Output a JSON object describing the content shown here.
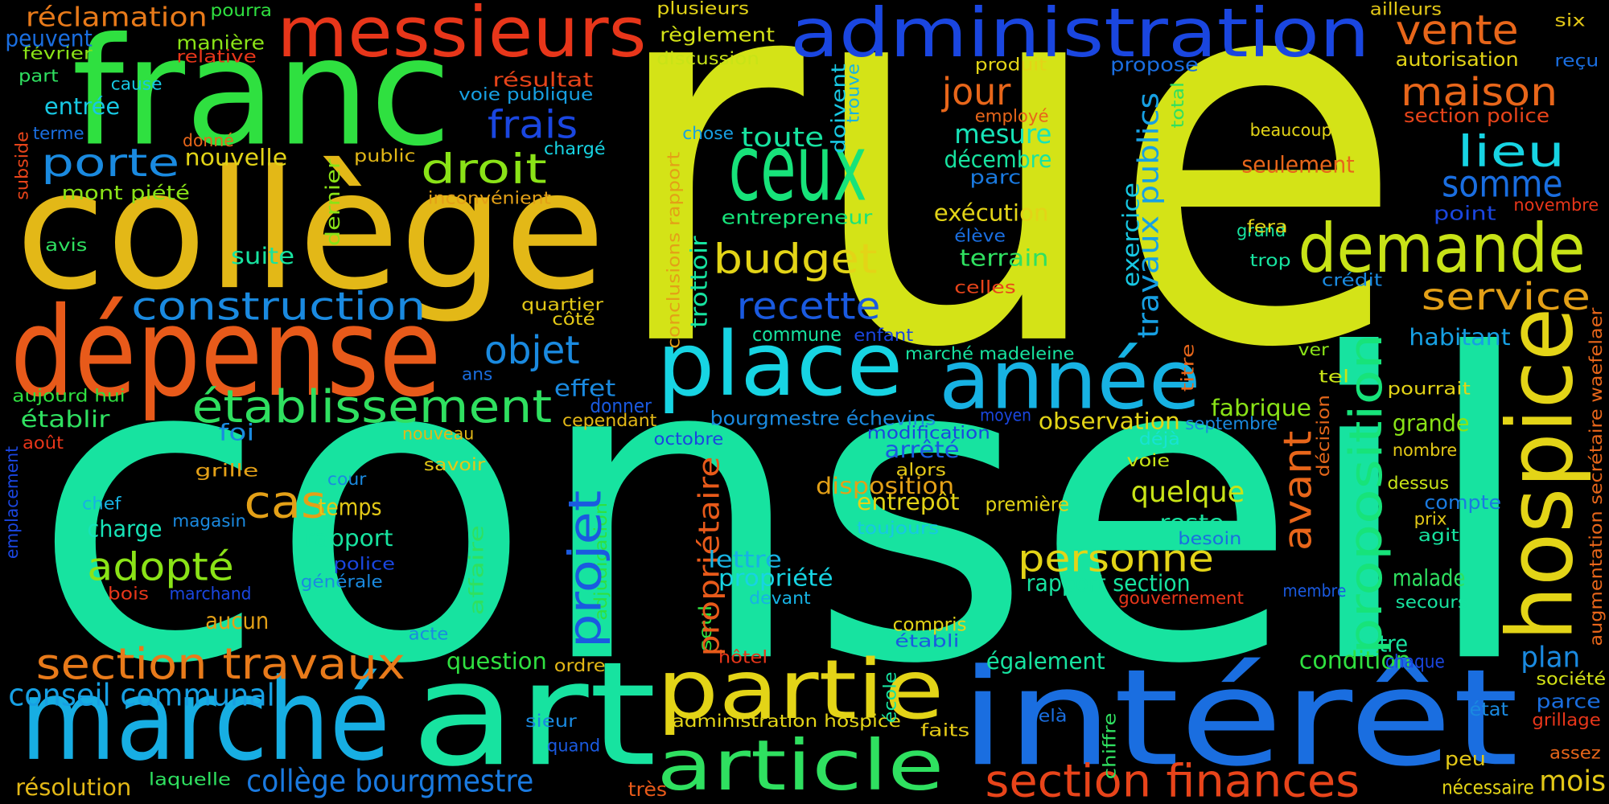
{
  "words": [
    {
      "text": "rue",
      "color": "#d4e317"
    },
    {
      "text": "conseil",
      "color": "#17e3a0"
    },
    {
      "text": "franc",
      "color": "#2fe040"
    },
    {
      "text": "collège",
      "color": "#e3b817"
    },
    {
      "text": "messieurs",
      "color": "#e8361a"
    },
    {
      "text": "administration",
      "color": "#1a46e0"
    },
    {
      "text": "dépense",
      "color": "#e85a1a"
    },
    {
      "text": "ceux",
      "color": "#17e37a"
    },
    {
      "text": "place",
      "color": "#17d4e3"
    },
    {
      "text": "année",
      "color": "#17b2e3"
    },
    {
      "text": "demande",
      "color": "#c8e317"
    },
    {
      "text": "hospice",
      "color": "#e3d417"
    },
    {
      "text": "intérêt",
      "color": "#1a6ee0"
    },
    {
      "text": "art",
      "color": "#17e3a0"
    },
    {
      "text": "marché",
      "color": "#17aee3"
    },
    {
      "text": "partie",
      "color": "#e3d417"
    },
    {
      "text": "article",
      "color": "#2fe060"
    },
    {
      "text": "section finances",
      "color": "#e8441a"
    },
    {
      "text": "section travaux",
      "color": "#e87a1a"
    },
    {
      "text": "conseil communal",
      "color": "#17a0e3"
    },
    {
      "text": "collège bourgmestre",
      "color": "#1a7ae0"
    },
    {
      "text": "résolution",
      "color": "#e3b817"
    },
    {
      "text": "laquelle",
      "color": "#2fe060"
    },
    {
      "text": "sieur",
      "color": "#1a8ae0"
    },
    {
      "text": "quand",
      "color": "#1a5ae0"
    },
    {
      "text": "très",
      "color": "#e85a1a"
    },
    {
      "text": "administration hospice",
      "color": "#e3d417"
    },
    {
      "text": "faits",
      "color": "#e3c817"
    },
    {
      "text": "mois",
      "color": "#e3c817"
    },
    {
      "text": "nécessaire",
      "color": "#e3d417"
    },
    {
      "text": "assez",
      "color": "#e8661a"
    },
    {
      "text": "peu",
      "color": "#e3c817"
    },
    {
      "text": "grillage",
      "color": "#e8361a"
    },
    {
      "text": "parce",
      "color": "#1a6ee0"
    },
    {
      "text": "société",
      "color": "#d4e317"
    },
    {
      "text": "état",
      "color": "#1a8ae0"
    },
    {
      "text": "plan",
      "color": "#1a8ae0"
    },
    {
      "text": "condition",
      "color": "#2fe040"
    },
    {
      "text": "chaque",
      "color": "#1a46e0"
    },
    {
      "text": "mètre",
      "color": "#17e3a0"
    },
    {
      "text": "également",
      "color": "#17e3a0"
    },
    {
      "text": "établi",
      "color": "#1a5ae0"
    },
    {
      "text": "hôtel",
      "color": "#e8361a"
    },
    {
      "text": "seul",
      "color": "#2fe040"
    },
    {
      "text": "école",
      "color": "#17e3a0"
    },
    {
      "text": "compris",
      "color": "#e3d417"
    },
    {
      "text": "question",
      "color": "#2fe040"
    },
    {
      "text": "ordre",
      "color": "#e3b817"
    },
    {
      "text": "acte",
      "color": "#1a8ae0"
    },
    {
      "text": "aucun",
      "color": "#e3a017"
    },
    {
      "text": "bois",
      "color": "#e8361a"
    },
    {
      "text": "marchand",
      "color": "#1a46e0"
    },
    {
      "text": "police",
      "color": "#1a46e0"
    },
    {
      "text": "générale",
      "color": "#1a8ae0"
    },
    {
      "text": "adopté",
      "color": "#8ae317"
    },
    {
      "text": "charge",
      "color": "#17e3b8"
    },
    {
      "text": "chef",
      "color": "#17b2e3"
    },
    {
      "text": "magasin",
      "color": "#1a8ae0"
    },
    {
      "text": "cas",
      "color": "#e3a017"
    },
    {
      "text": "temps",
      "color": "#e3c817"
    },
    {
      "text": "cour",
      "color": "#1a8ae0"
    },
    {
      "text": "rapport",
      "color": "#17e3a0"
    },
    {
      "text": "affaire",
      "color": "#2fe060"
    },
    {
      "text": "adjudication",
      "color": "#2fe040"
    },
    {
      "text": "projet",
      "color": "#1a5ae0"
    },
    {
      "text": "propriétaire",
      "color": "#e85a1a"
    },
    {
      "text": "lettre",
      "color": "#17b2e3"
    },
    {
      "text": "propriété",
      "color": "#17d4e3"
    },
    {
      "text": "devant",
      "color": "#17b2e3"
    },
    {
      "text": "toujours",
      "color": "#17c8e3"
    },
    {
      "text": "entrepôt",
      "color": "#e3d417"
    },
    {
      "text": "disposition",
      "color": "#e3a017"
    },
    {
      "text": "arrêté",
      "color": "#1a5ae0"
    },
    {
      "text": "alors",
      "color": "#e3c817"
    },
    {
      "text": "modification",
      "color": "#1a46e0"
    },
    {
      "text": "moyen",
      "color": "#1a46e0"
    },
    {
      "text": "première",
      "color": "#e3d417"
    },
    {
      "text": "personne",
      "color": "#e3d417"
    },
    {
      "text": "quelque",
      "color": "#c8e317"
    },
    {
      "text": "rapport section",
      "color": "#17e3a0"
    },
    {
      "text": "gouvernement",
      "color": "#e8361a"
    },
    {
      "text": "reste",
      "color": "#17e3a0"
    },
    {
      "text": "besoin",
      "color": "#1a6ee0"
    },
    {
      "text": "avant",
      "color": "#e8661a"
    },
    {
      "text": "proposition",
      "color": "#17e37a"
    },
    {
      "text": "fabrique",
      "color": "#8ae317"
    },
    {
      "text": "observation",
      "color": "#e3d417"
    },
    {
      "text": "septembre",
      "color": "#1a8ae0"
    },
    {
      "text": "déjà",
      "color": "#17e3d4"
    },
    {
      "text": "voie",
      "color": "#c8e317"
    },
    {
      "text": "décision",
      "color": "#e3661a"
    },
    {
      "text": "titre",
      "color": "#e8661a"
    },
    {
      "text": "ver",
      "color": "#8ae317"
    },
    {
      "text": "tel",
      "color": "#c8e317"
    },
    {
      "text": "pourrait",
      "color": "#e3d417"
    },
    {
      "text": "grande",
      "color": "#8ae317"
    },
    {
      "text": "nombre",
      "color": "#e3c817"
    },
    {
      "text": "dessus",
      "color": "#c8e317"
    },
    {
      "text": "compte",
      "color": "#1a7ae0"
    },
    {
      "text": "prix",
      "color": "#e3c817"
    },
    {
      "text": "agit",
      "color": "#17e3a0"
    },
    {
      "text": "malade",
      "color": "#2fe060"
    },
    {
      "text": "secours",
      "color": "#17e3a0"
    },
    {
      "text": "membre",
      "color": "#1a5ae0"
    },
    {
      "text": "habitant",
      "color": "#17a0e3"
    },
    {
      "text": "service",
      "color": "#e3a017"
    },
    {
      "text": "crédit",
      "color": "#1a8ae0"
    },
    {
      "text": "trop",
      "color": "#17e3a0"
    },
    {
      "text": "grand",
      "color": "#17e3a0"
    },
    {
      "text": "point",
      "color": "#1a46e0"
    },
    {
      "text": "novembre",
      "color": "#e8361a"
    },
    {
      "text": "somme",
      "color": "#1a6ee0"
    },
    {
      "text": "lieu",
      "color": "#17d4e3"
    },
    {
      "text": "seulement",
      "color": "#e8661a"
    },
    {
      "text": "beaucoup",
      "color": "#e3d417"
    },
    {
      "text": "section police",
      "color": "#e8441a"
    },
    {
      "text": "maison",
      "color": "#e8661a"
    },
    {
      "text": "autorisation",
      "color": "#e3d417"
    },
    {
      "text": "reçu",
      "color": "#1a6ee0"
    },
    {
      "text": "six",
      "color": "#e3c817"
    },
    {
      "text": "ailleurs",
      "color": "#e3c817"
    },
    {
      "text": "vente",
      "color": "#e8661a"
    },
    {
      "text": "augmentation secrétaire waefelaer",
      "color": "#e8661a"
    },
    {
      "text": "total",
      "color": "#2fe060"
    },
    {
      "text": "travaux publics",
      "color": "#17a0e3"
    },
    {
      "text": "exercice",
      "color": "#17c8e3"
    },
    {
      "text": "fera",
      "color": "#e3d417"
    },
    {
      "text": "terrain",
      "color": "#2fe060"
    },
    {
      "text": "élève",
      "color": "#1a6ee0"
    },
    {
      "text": "exécution",
      "color": "#e3d417"
    },
    {
      "text": "celles",
      "color": "#e8441a"
    },
    {
      "text": "décembre",
      "color": "#17e3a0"
    },
    {
      "text": "mesure",
      "color": "#17e3b8"
    },
    {
      "text": "parc",
      "color": "#1a7ae0"
    },
    {
      "text": "employé",
      "color": "#e8661a"
    },
    {
      "text": "jour",
      "color": "#e8661a"
    },
    {
      "text": "produit",
      "color": "#e3d417"
    },
    {
      "text": "propose",
      "color": "#1a6ee0"
    },
    {
      "text": "doivent",
      "color": "#17c8e3"
    },
    {
      "text": "trouve",
      "color": "#17b2e3"
    },
    {
      "text": "chose",
      "color": "#17a0e3"
    },
    {
      "text": "toute",
      "color": "#17e3a0"
    },
    {
      "text": "conclusions rapport",
      "color": "#e3a017"
    },
    {
      "text": "trottoir",
      "color": "#17e3a0"
    },
    {
      "text": "entrepreneur",
      "color": "#17e37a"
    },
    {
      "text": "budget",
      "color": "#e3d417"
    },
    {
      "text": "recette",
      "color": "#1a5ae0"
    },
    {
      "text": "commune",
      "color": "#17e3a0"
    },
    {
      "text": "enfant",
      "color": "#1a46e0"
    },
    {
      "text": "marché madeleine",
      "color": "#17e3a0"
    },
    {
      "text": "bourgmestre échevins",
      "color": "#1a8ae0"
    },
    {
      "text": "octobre",
      "color": "#1a46e0"
    },
    {
      "text": "effet",
      "color": "#1a8ae0"
    },
    {
      "text": "donner",
      "color": "#1a5ae0"
    },
    {
      "text": "cependant",
      "color": "#e3b817"
    },
    {
      "text": "objet",
      "color": "#1a8ae0"
    },
    {
      "text": "ans",
      "color": "#1a6ee0"
    },
    {
      "text": "établissement",
      "color": "#2fe060"
    },
    {
      "text": "construction",
      "color": "#1a8ae0"
    },
    {
      "text": "quartier",
      "color": "#e3c817"
    },
    {
      "text": "côté",
      "color": "#e3c817"
    },
    {
      "text": "droit",
      "color": "#8ae317"
    },
    {
      "text": "frais",
      "color": "#1a46e0"
    },
    {
      "text": "résultat",
      "color": "#e8441a"
    },
    {
      "text": "voie publique",
      "color": "#17a0e3"
    },
    {
      "text": "chargé",
      "color": "#17d4e3"
    },
    {
      "text": "inconvénient",
      "color": "#e3a017"
    },
    {
      "text": "public",
      "color": "#e3b817"
    },
    {
      "text": "donné",
      "color": "#e8661a"
    },
    {
      "text": "nouvelle",
      "color": "#e3d417"
    },
    {
      "text": "mont piété",
      "color": "#8ae317"
    },
    {
      "text": "porte",
      "color": "#1a8ae0"
    },
    {
      "text": "entrée",
      "color": "#17c8e3"
    },
    {
      "text": "terme",
      "color": "#1a6ee0"
    },
    {
      "text": "cause",
      "color": "#17c8e3"
    },
    {
      "text": "part",
      "color": "#2fe060"
    },
    {
      "text": "février",
      "color": "#8ae317"
    },
    {
      "text": "peuvent",
      "color": "#1a6ee0"
    },
    {
      "text": "réclamation",
      "color": "#e87a1a"
    },
    {
      "text": "pourra",
      "color": "#2fe040"
    },
    {
      "text": "manière",
      "color": "#8ae317"
    },
    {
      "text": "relative",
      "color": "#e8361a"
    },
    {
      "text": "subside",
      "color": "#e8441a"
    },
    {
      "text": "dernier",
      "color": "#8ae317"
    },
    {
      "text": "avis",
      "color": "#2fe060"
    },
    {
      "text": "suite",
      "color": "#17e3a0"
    },
    {
      "text": "aujourd hui",
      "color": "#2fe040"
    },
    {
      "text": "établir",
      "color": "#2fe060"
    },
    {
      "text": "août",
      "color": "#e8361a"
    },
    {
      "text": "foi",
      "color": "#1a8ae0"
    },
    {
      "text": "nouveau",
      "color": "#e3b817"
    },
    {
      "text": "savoir",
      "color": "#e3c817"
    },
    {
      "text": "grille",
      "color": "#e3a017"
    },
    {
      "text": "emplacement",
      "color": "#1a46e0"
    },
    {
      "text": "plusieurs",
      "color": "#e3d417"
    },
    {
      "text": "règlement",
      "color": "#d4e317"
    },
    {
      "text": "discussion",
      "color": "#c8e317"
    },
    {
      "text": "chiffre",
      "color": "#2fe060"
    },
    {
      "text": "delà",
      "color": "#1a6ee0"
    }
  ]
}
